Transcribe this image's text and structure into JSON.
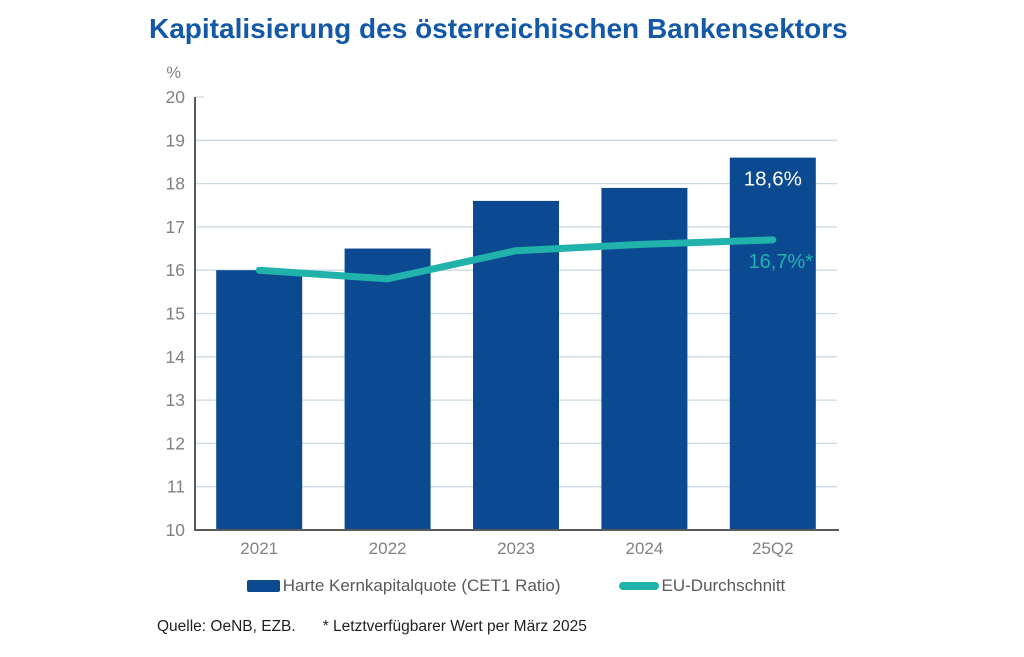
{
  "header": {
    "title": "Kapitalisierung des österreichischen Bankensektors",
    "title_color": "#1458A8"
  },
  "chart_data": {
    "type": "bar",
    "subtype": "combo-bar-line",
    "title": "Kapitalisierung des österreichischen Bankensektors",
    "categories": [
      "2021",
      "2022",
      "2023",
      "2024",
      "25Q2"
    ],
    "series": [
      {
        "name": "Harte Kernkapitalquote (CET1 Ratio)",
        "type": "bar",
        "color": "#0B4A91",
        "values": [
          16.0,
          16.5,
          17.6,
          17.9,
          18.6
        ]
      },
      {
        "name": "EU-Durchschnitt",
        "type": "line",
        "color": "#20B2AB",
        "values": [
          16.0,
          15.8,
          16.45,
          16.6,
          16.7
        ]
      }
    ],
    "xlabel": "",
    "ylabel": "%",
    "ylim": [
      10,
      20
    ],
    "yticks": [
      10,
      11,
      12,
      13,
      14,
      15,
      16,
      17,
      18,
      19,
      20
    ],
    "grid": true,
    "legend_position": "bottom",
    "annotations": [
      {
        "text": "18,6%",
        "series": 0,
        "index": 4,
        "color": "#ffffff"
      },
      {
        "text": "16,7%*",
        "series": 1,
        "index": 4,
        "color": "#20B2AB"
      }
    ]
  },
  "axis_style": {
    "grid_color": "#CBD9E2",
    "axis_color": "#58595B",
    "tick_label_color": "#808184"
  },
  "footer": {
    "source": "Quelle: OeNB, EZB.",
    "footnote": "* Letztverfügbarer Wert per März 2025"
  }
}
